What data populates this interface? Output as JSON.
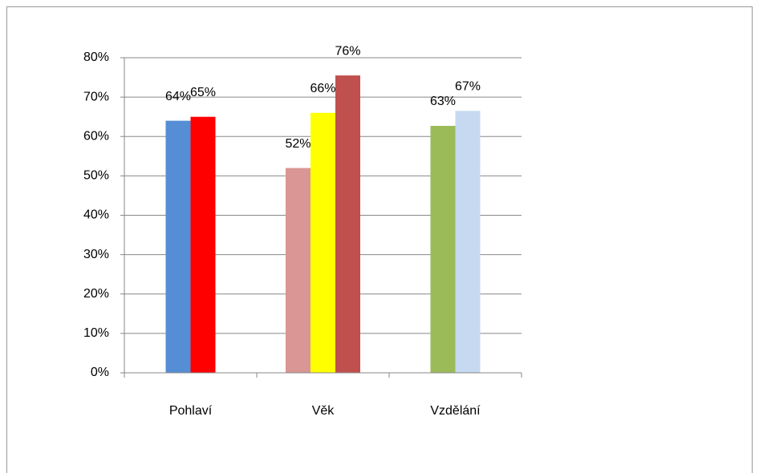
{
  "chart_data": {
    "type": "bar",
    "categories": [
      "Pohlaví",
      "Věk",
      "Vzdělání"
    ],
    "groups": [
      {
        "values": [
          64,
          65
        ],
        "value_labels": [
          "64%",
          "65%"
        ],
        "colors": [
          "#558ed5",
          "#ff0000"
        ]
      },
      {
        "values": [
          52,
          66,
          75.5
        ],
        "value_labels": [
          "52%",
          "66%",
          "76%"
        ],
        "colors": [
          "#d99694",
          "#ffff00",
          "#c0504d"
        ]
      },
      {
        "values": [
          62.7,
          66.5
        ],
        "value_labels": [
          "63%",
          "67%"
        ],
        "colors": [
          "#9bbb59",
          "#c6d9f1"
        ]
      }
    ],
    "ylim": [
      0,
      80
    ],
    "yticks": [
      {
        "value": 0,
        "label": "0%"
      },
      {
        "value": 10,
        "label": "10%"
      },
      {
        "value": 20,
        "label": "20%"
      },
      {
        "value": 30,
        "label": "30%"
      },
      {
        "value": 40,
        "label": "40%"
      },
      {
        "value": 50,
        "label": "50%"
      },
      {
        "value": 60,
        "label": "60%"
      },
      {
        "value": 70,
        "label": "70%"
      },
      {
        "value": 80,
        "label": "80%"
      }
    ],
    "grid": true
  }
}
